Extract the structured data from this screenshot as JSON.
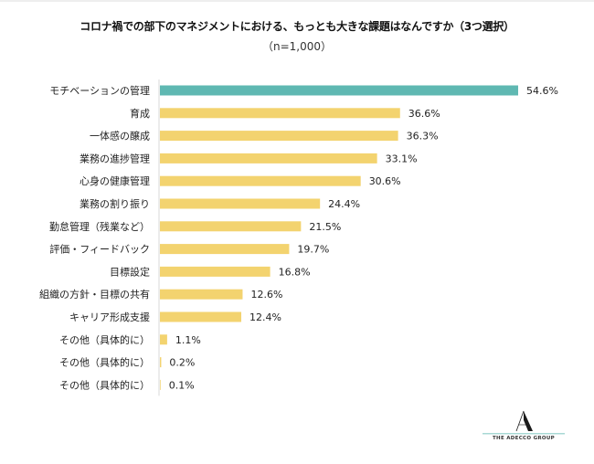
{
  "chart_data": {
    "type": "bar",
    "orientation": "horizontal",
    "title": "コロナ禍での部下のマネジメントにおける、もっとも大きな課題はなんですか（3つ選択）",
    "subtitle": "（n=1,000）",
    "xlabel": "",
    "ylabel": "",
    "xlim": [
      0,
      60
    ],
    "grid": false,
    "legend": "none",
    "unit": "%",
    "categories": [
      "モチベーションの管理",
      "育成",
      "一体感の醸成",
      "業務の進捗管理",
      "心身の健康管理",
      "業務の割り振り",
      "勤怠管理（残業など）",
      "評価・フィードバック",
      "目標設定",
      "組織の方針・目標の共有",
      "キャリア形成支援",
      "その他（具体的に）",
      "その他（具体的に）",
      "その他（具体的に）"
    ],
    "values": [
      54.6,
      36.6,
      36.3,
      33.1,
      30.6,
      24.4,
      21.5,
      19.7,
      16.8,
      12.6,
      12.4,
      1.1,
      0.2,
      0.1
    ],
    "data_labels": [
      "54.6%",
      "36.6%",
      "36.3%",
      "33.1%",
      "30.6%",
      "24.4%",
      "21.5%",
      "19.7%",
      "16.8%",
      "12.6%",
      "12.4%",
      "1.1%",
      "0.2%",
      "0.1%"
    ],
    "highlight_index": 0,
    "colors": {
      "highlight": "#5fb8b2",
      "default": "#f3d36f",
      "axis": "#d9d9d9"
    }
  },
  "logo": {
    "name": "THE ADECCO GROUP",
    "accent": "#a8d8d4"
  }
}
